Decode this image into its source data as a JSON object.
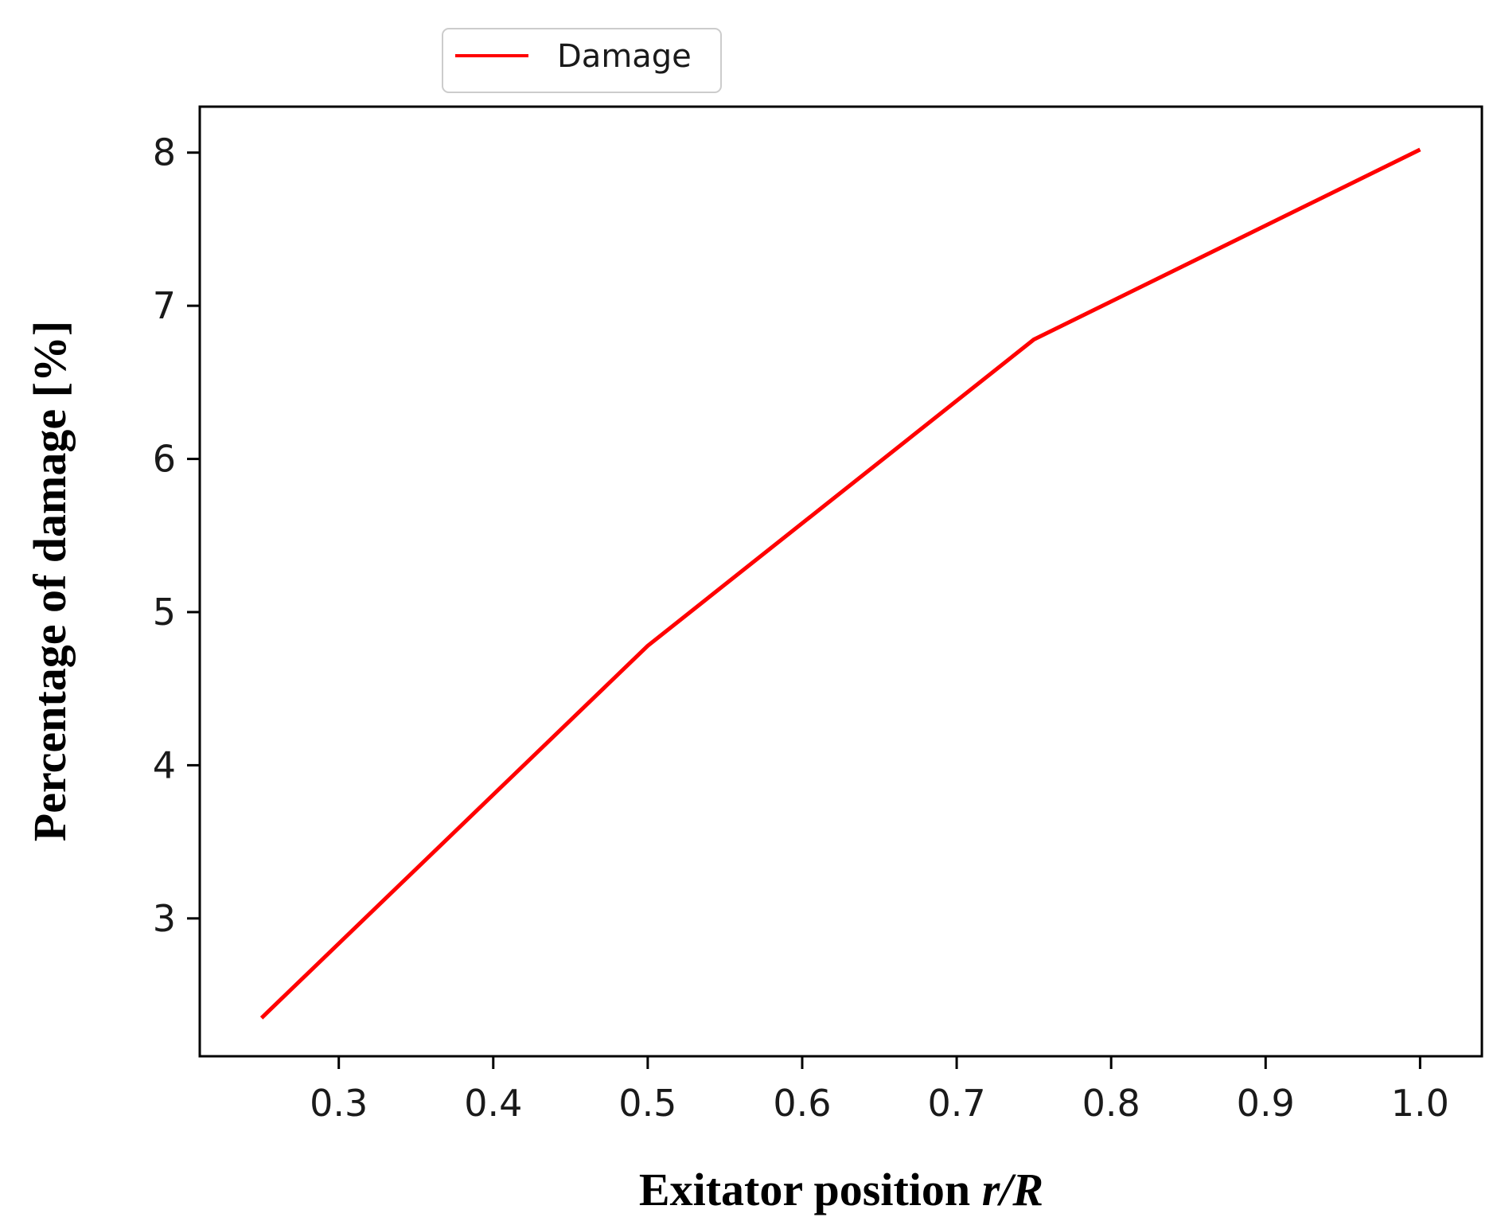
{
  "chart_data": {
    "type": "line",
    "title": "",
    "xlabel_main": "Exitator position ",
    "xlabel_var": "r/R",
    "ylabel": "Percentage of damage [%]",
    "xlim": [
      0.21,
      1.04
    ],
    "ylim": [
      2.1,
      8.3
    ],
    "x_ticks": [
      0.3,
      0.4,
      0.5,
      0.6,
      0.7,
      0.8,
      0.9,
      1.0
    ],
    "x_tick_labels": [
      "0.3",
      "0.4",
      "0.5",
      "0.6",
      "0.7",
      "0.8",
      "0.9",
      "1.0"
    ],
    "y_ticks": [
      3,
      4,
      5,
      6,
      7,
      8
    ],
    "y_tick_labels": [
      "3",
      "4",
      "5",
      "6",
      "7",
      "8"
    ],
    "grid": false,
    "legend_position": "top-center-outside",
    "series": [
      {
        "name": "Damage",
        "color": "#ff0000",
        "x": [
          0.25,
          0.5,
          0.75,
          1.0
        ],
        "y": [
          2.35,
          4.78,
          6.78,
          8.02
        ]
      }
    ]
  }
}
